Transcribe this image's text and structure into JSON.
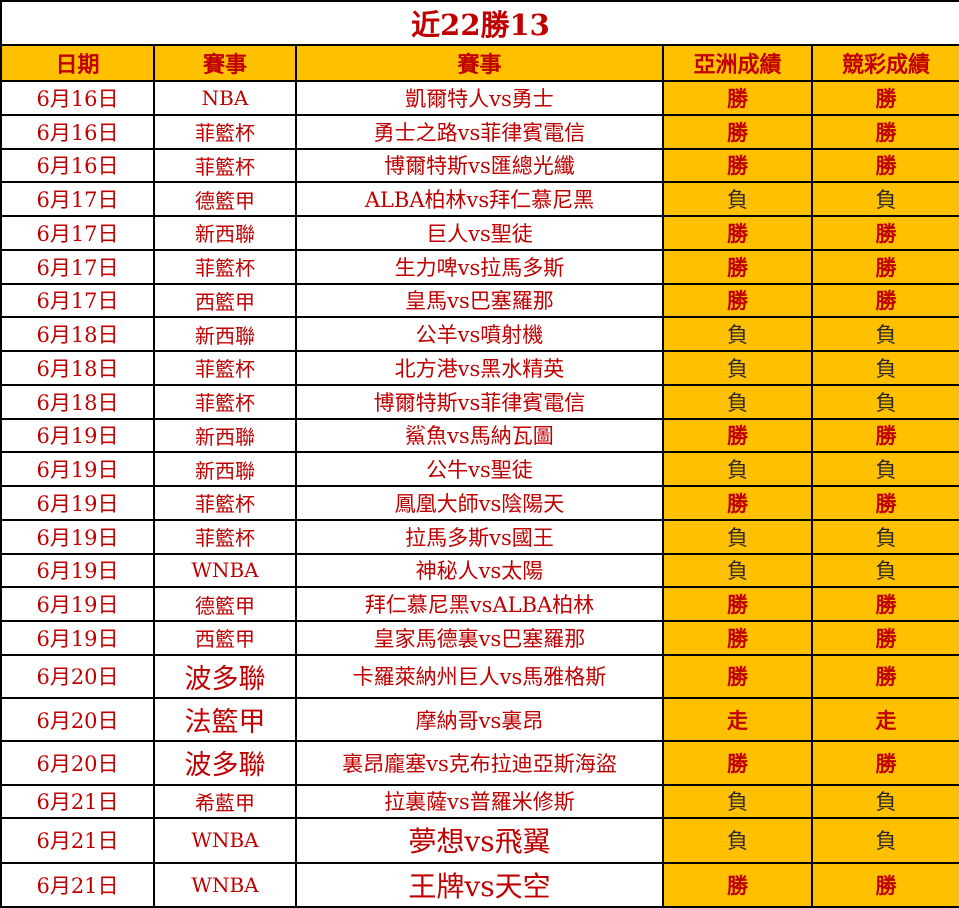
{
  "title": "近22勝13",
  "header": {
    "columns": [
      "日期",
      "賽事",
      "賽事",
      "亞洲成績",
      "競彩成績"
    ]
  },
  "result_labels": {
    "win": "勝",
    "lose": "負",
    "push": "走"
  },
  "summary": {
    "total_games": 22,
    "total_wins": 13
  },
  "rows": [
    {
      "date": "6月16日",
      "league": "NBA",
      "match": "凱爾特人vs勇士",
      "asian": "勝",
      "lottery": "勝"
    },
    {
      "date": "6月16日",
      "league": "菲籃杯",
      "match": "勇士之路vs菲律賓電信",
      "asian": "勝",
      "lottery": "勝"
    },
    {
      "date": "6月16日",
      "league": "菲籃杯",
      "match": "博爾特斯vs匯總光纖",
      "asian": "勝",
      "lottery": "勝"
    },
    {
      "date": "6月17日",
      "league": "德籃甲",
      "match": "ALBA柏林vs拜仁慕尼黑",
      "asian": "負",
      "lottery": "負"
    },
    {
      "date": "6月17日",
      "league": "新西聯",
      "match": "巨人vs聖徒",
      "asian": "勝",
      "lottery": "勝"
    },
    {
      "date": "6月17日",
      "league": "菲籃杯",
      "match": "生力啤vs拉馬多斯",
      "asian": "勝",
      "lottery": "勝"
    },
    {
      "date": "6月17日",
      "league": "西籃甲",
      "match": "皇馬vs巴塞羅那",
      "asian": "勝",
      "lottery": "勝"
    },
    {
      "date": "6月18日",
      "league": "新西聯",
      "match": "公羊vs噴射機",
      "asian": "負",
      "lottery": "負"
    },
    {
      "date": "6月18日",
      "league": "菲籃杯",
      "match": "北方港vs黑水精英",
      "asian": "負",
      "lottery": "負"
    },
    {
      "date": "6月18日",
      "league": "菲籃杯",
      "match": "博爾特斯vs菲律賓電信",
      "asian": "負",
      "lottery": "負"
    },
    {
      "date": "6月19日",
      "league": "新西聯",
      "match": "鯊魚vs馬納瓦圖",
      "asian": "勝",
      "lottery": "勝"
    },
    {
      "date": "6月19日",
      "league": "新西聯",
      "match": "公牛vs聖徒",
      "asian": "負",
      "lottery": "負"
    },
    {
      "date": "6月19日",
      "league": "菲籃杯",
      "match": "鳳凰大師vs陰陽天",
      "asian": "勝",
      "lottery": "勝"
    },
    {
      "date": "6月19日",
      "league": "菲籃杯",
      "match": "拉馬多斯vs國王",
      "asian": "負",
      "lottery": "負"
    },
    {
      "date": "6月19日",
      "league": "WNBA",
      "match": "神秘人vs太陽",
      "asian": "負",
      "lottery": "負"
    },
    {
      "date": "6月19日",
      "league": "德籃甲",
      "match": "拜仁慕尼黑vsALBA柏林",
      "asian": "勝",
      "lottery": "勝"
    },
    {
      "date": "6月19日",
      "league": "西籃甲",
      "match": "皇家馬德裏vs巴塞羅那",
      "asian": "勝",
      "lottery": "勝"
    },
    {
      "date": "6月20日",
      "league": "波多聯",
      "league_large": true,
      "match": "卡羅萊納州巨人vs馬雅格斯",
      "asian": "勝",
      "lottery": "勝"
    },
    {
      "date": "6月20日",
      "league": "法籃甲",
      "league_large": true,
      "match": "摩納哥vs裏昂",
      "asian": "走",
      "lottery": "走"
    },
    {
      "date": "6月20日",
      "league": "波多聯",
      "league_large": true,
      "match": "裏昂龐塞vs克布拉迪亞斯海盜",
      "asian": "勝",
      "lottery": "勝"
    },
    {
      "date": "6月21日",
      "league": "希藍甲",
      "match": "拉裏薩vs普羅米修斯",
      "asian": "負",
      "lottery": "負"
    },
    {
      "date": "6月21日",
      "league": "WNBA",
      "match": "夢想vs飛翼",
      "match_large": true,
      "asian": "負",
      "lottery": "負"
    },
    {
      "date": "6月21日",
      "league": "WNBA",
      "match": "王牌vs天空",
      "match_large": true,
      "asian": "勝",
      "lottery": "勝"
    }
  ],
  "colors": {
    "orange": "#FFC000",
    "red": "#C00000",
    "dark": "#2E2929",
    "border": "#000000"
  }
}
